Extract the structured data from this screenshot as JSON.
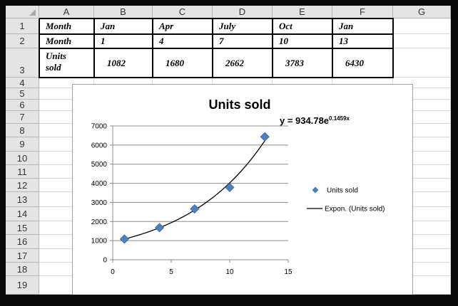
{
  "columns": [
    "A",
    "B",
    "C",
    "D",
    "E",
    "F",
    "G"
  ],
  "rows": [
    "1",
    "2",
    "3",
    "4",
    "5",
    "6",
    "7",
    "8",
    "9",
    "10",
    "11",
    "12",
    "13",
    "14",
    "15",
    "16",
    "17",
    "18",
    "19"
  ],
  "table": {
    "row1": [
      "Month",
      "Jan",
      "Apr",
      "July",
      "Oct",
      "Jan"
    ],
    "row2": [
      "Month",
      "1",
      "4",
      "7",
      "10",
      "13"
    ],
    "row3_label": [
      "Units",
      "sold"
    ],
    "row3": [
      "1082",
      "1680",
      "2662",
      "3783",
      "6430"
    ]
  },
  "chart_data": {
    "type": "scatter",
    "title": "Units sold",
    "equation": {
      "base": "y = 934.78e",
      "exponent": "0.1459x"
    },
    "x_ticks": [
      "0",
      "5",
      "10",
      "15"
    ],
    "y_ticks": [
      "0",
      "1000",
      "2000",
      "3000",
      "4000",
      "5000",
      "6000",
      "7000"
    ],
    "xlim": [
      0,
      15
    ],
    "ylim": [
      0,
      7000
    ],
    "grid": true,
    "series": [
      {
        "name": "Units sold",
        "x": [
          1,
          4,
          7,
          10,
          13
        ],
        "y": [
          1082,
          1680,
          2662,
          3783,
          6430
        ],
        "marker": "diamond",
        "color": "#4f81bd"
      }
    ],
    "trendline": {
      "name": "Expon. (Units sold)",
      "a": 934.78,
      "b": 0.1459,
      "color": "#000000"
    },
    "legend": {
      "placement": "right",
      "items": [
        "Units sold",
        "Expon. (Units sold)"
      ]
    }
  }
}
